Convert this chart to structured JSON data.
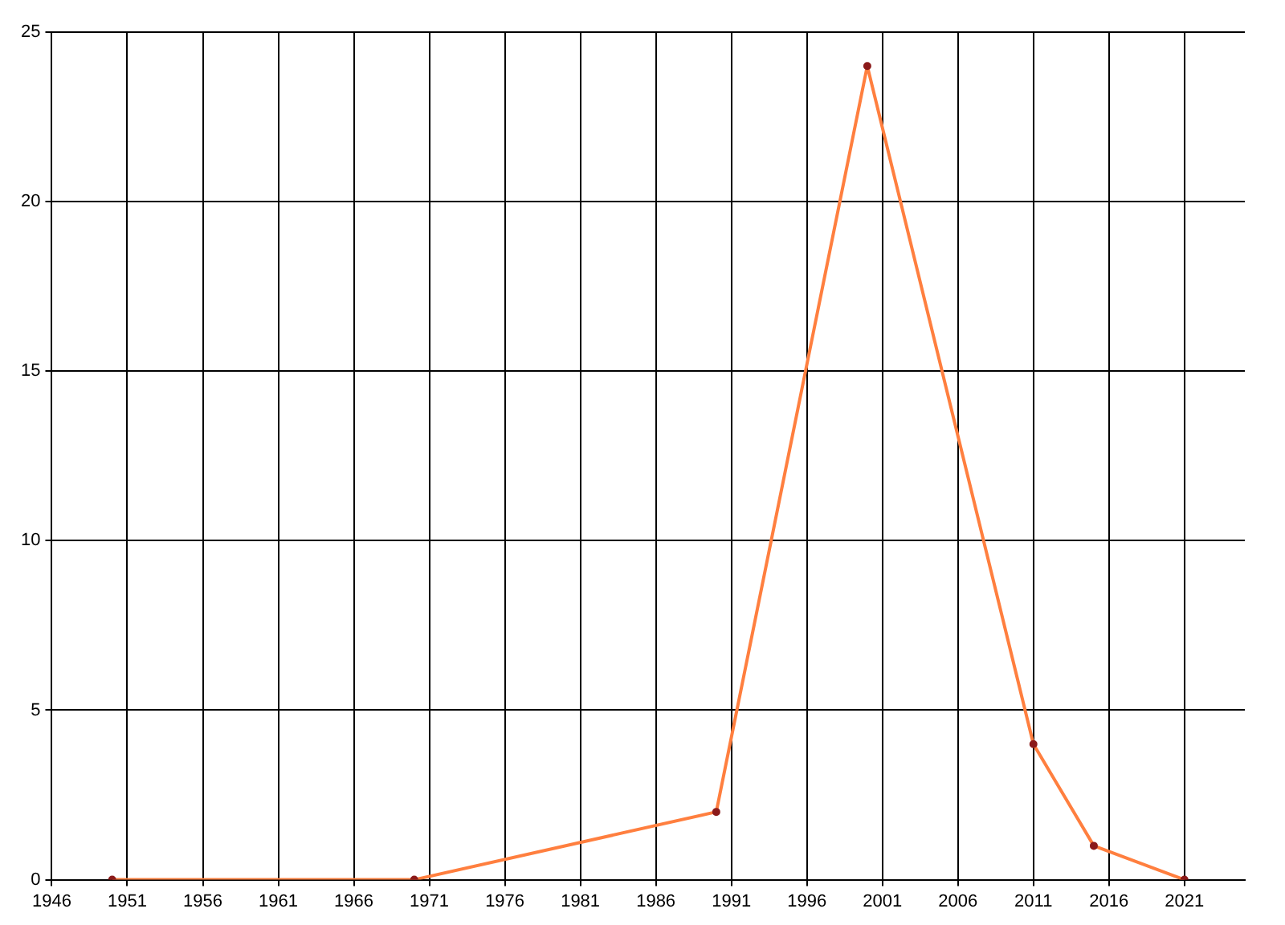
{
  "chart_data": {
    "type": "line",
    "x": [
      1950,
      1970,
      1990,
      2000,
      2011,
      2015,
      2021
    ],
    "series": [
      {
        "color": "#ff7f3f",
        "values": [
          0,
          0,
          2,
          24,
          4,
          1,
          0
        ]
      }
    ],
    "xlim": [
      1946,
      2025
    ],
    "xticks": [
      1946,
      1951,
      1956,
      1961,
      1966,
      1971,
      1976,
      1981,
      1986,
      1991,
      1996,
      2001,
      2006,
      2011,
      2016,
      2021
    ],
    "ylim": [
      0,
      25
    ],
    "yticks": [
      0,
      5,
      10,
      15,
      20,
      25
    ],
    "grid": true,
    "legend": false,
    "marker": "circle",
    "line_style": "solid"
  }
}
